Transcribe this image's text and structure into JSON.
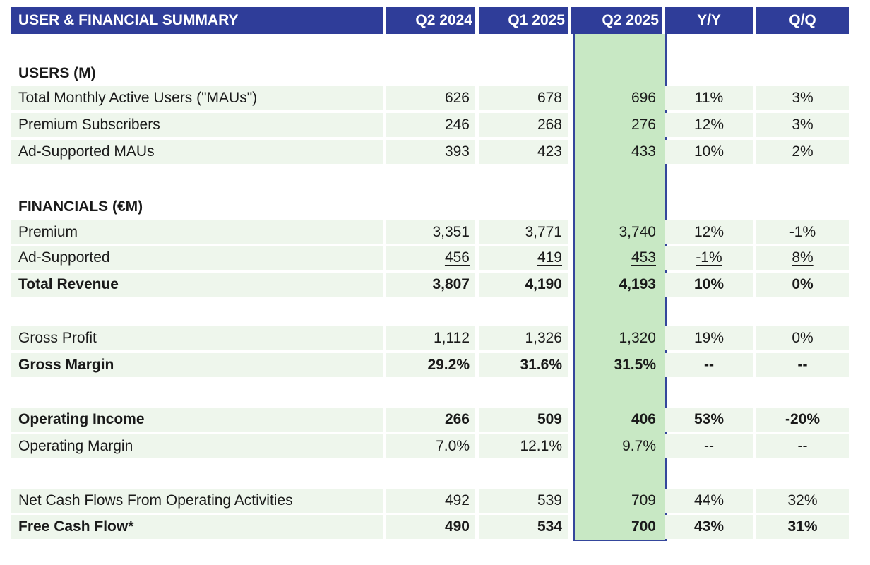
{
  "header": {
    "title": "USER & FINANCIAL SUMMARY",
    "columns": [
      "Q2 2024",
      "Q1 2025",
      "Q2 2025",
      "Y/Y",
      "Q/Q"
    ]
  },
  "sections": {
    "users": "USERS (M)",
    "financials": "FINANCIALS (€M)"
  },
  "rows": [
    {
      "label": "Total Monthly Active Users (\"MAUs\")",
      "values": [
        "626",
        "678",
        "696",
        "11%",
        "3%"
      ]
    },
    {
      "label": "Premium Subscribers",
      "values": [
        "246",
        "268",
        "276",
        "12%",
        "3%"
      ]
    },
    {
      "label": "Ad-Supported MAUs",
      "values": [
        "393",
        "423",
        "433",
        "10%",
        "2%"
      ]
    },
    {
      "label": "Premium",
      "values": [
        "3,351",
        "3,771",
        "3,740",
        "12%",
        "-1%"
      ]
    },
    {
      "label": "Ad-Supported",
      "values": [
        "456",
        "419",
        "453",
        "-1%",
        "8%"
      ]
    },
    {
      "label": "Total Revenue",
      "values": [
        "3,807",
        "4,190",
        "4,193",
        "10%",
        "0%"
      ]
    },
    {
      "label": "Gross Profit",
      "values": [
        "1,112",
        "1,326",
        "1,320",
        "19%",
        "0%"
      ]
    },
    {
      "label": "Gross Margin",
      "values": [
        "29.2%",
        "31.6%",
        "31.5%",
        "--",
        "--"
      ]
    },
    {
      "label": "Operating Income",
      "values": [
        "266",
        "509",
        "406",
        "53%",
        "-20%"
      ]
    },
    {
      "label": "Operating Margin",
      "values": [
        "7.0%",
        "12.1%",
        "9.7%",
        "--",
        "--"
      ]
    },
    {
      "label": "Net Cash Flows From Operating Activities",
      "values": [
        "492",
        "539",
        "709",
        "44%",
        "32%"
      ]
    },
    {
      "label": "Free Cash Flow*",
      "values": [
        "490",
        "534",
        "700",
        "43%",
        "31%"
      ]
    }
  ],
  "colors": {
    "header_bg": "#2f3d99",
    "highlight_bg": "#c8e8c4",
    "row_shade": "#eef6ec"
  }
}
